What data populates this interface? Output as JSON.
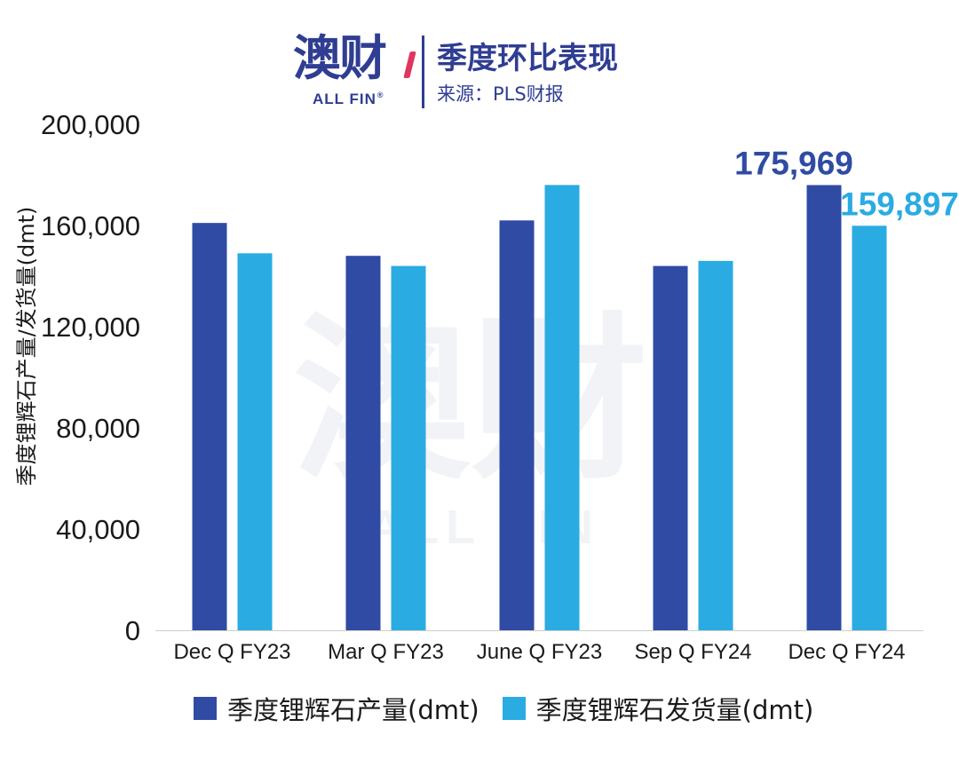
{
  "header": {
    "logo_cn": "澳财",
    "logo_en": "ALL FIN",
    "logo_reg": "®",
    "title": "季度环比表现",
    "source": "来源：PLS财报"
  },
  "colors": {
    "production": "#2f4ba3",
    "shipment": "#2aabe2",
    "axis_text": "#1a1a1a",
    "watermark": "#f2f3f7"
  },
  "chart_data": {
    "type": "bar",
    "categories": [
      "Dec Q FY23",
      "Mar Q FY23",
      "June Q FY23",
      "Sep Q FY24",
      "Dec Q FY24"
    ],
    "series": [
      {
        "name": "季度锂辉石产量(dmt)",
        "values": [
          161000,
          148000,
          162000,
          144000,
          175969
        ]
      },
      {
        "name": "季度锂辉石发货量(dmt)",
        "values": [
          149000,
          144000,
          176000,
          146000,
          159897
        ]
      }
    ],
    "ylabel": "季度锂辉石产量/发货量(dmt)",
    "ylim": [
      0,
      200000
    ],
    "yticks": [
      "0",
      "40,000",
      "80,000",
      "120,000",
      "160,000",
      "200,000"
    ],
    "data_labels": [
      {
        "series": 0,
        "category": 4,
        "text": "175,969"
      },
      {
        "series": 1,
        "category": 4,
        "text": "159,897"
      }
    ],
    "grid": false,
    "legend": "bottom"
  },
  "legend": {
    "production": "季度锂辉石产量(dmt)",
    "shipment": "季度锂辉石发货量(dmt)"
  }
}
